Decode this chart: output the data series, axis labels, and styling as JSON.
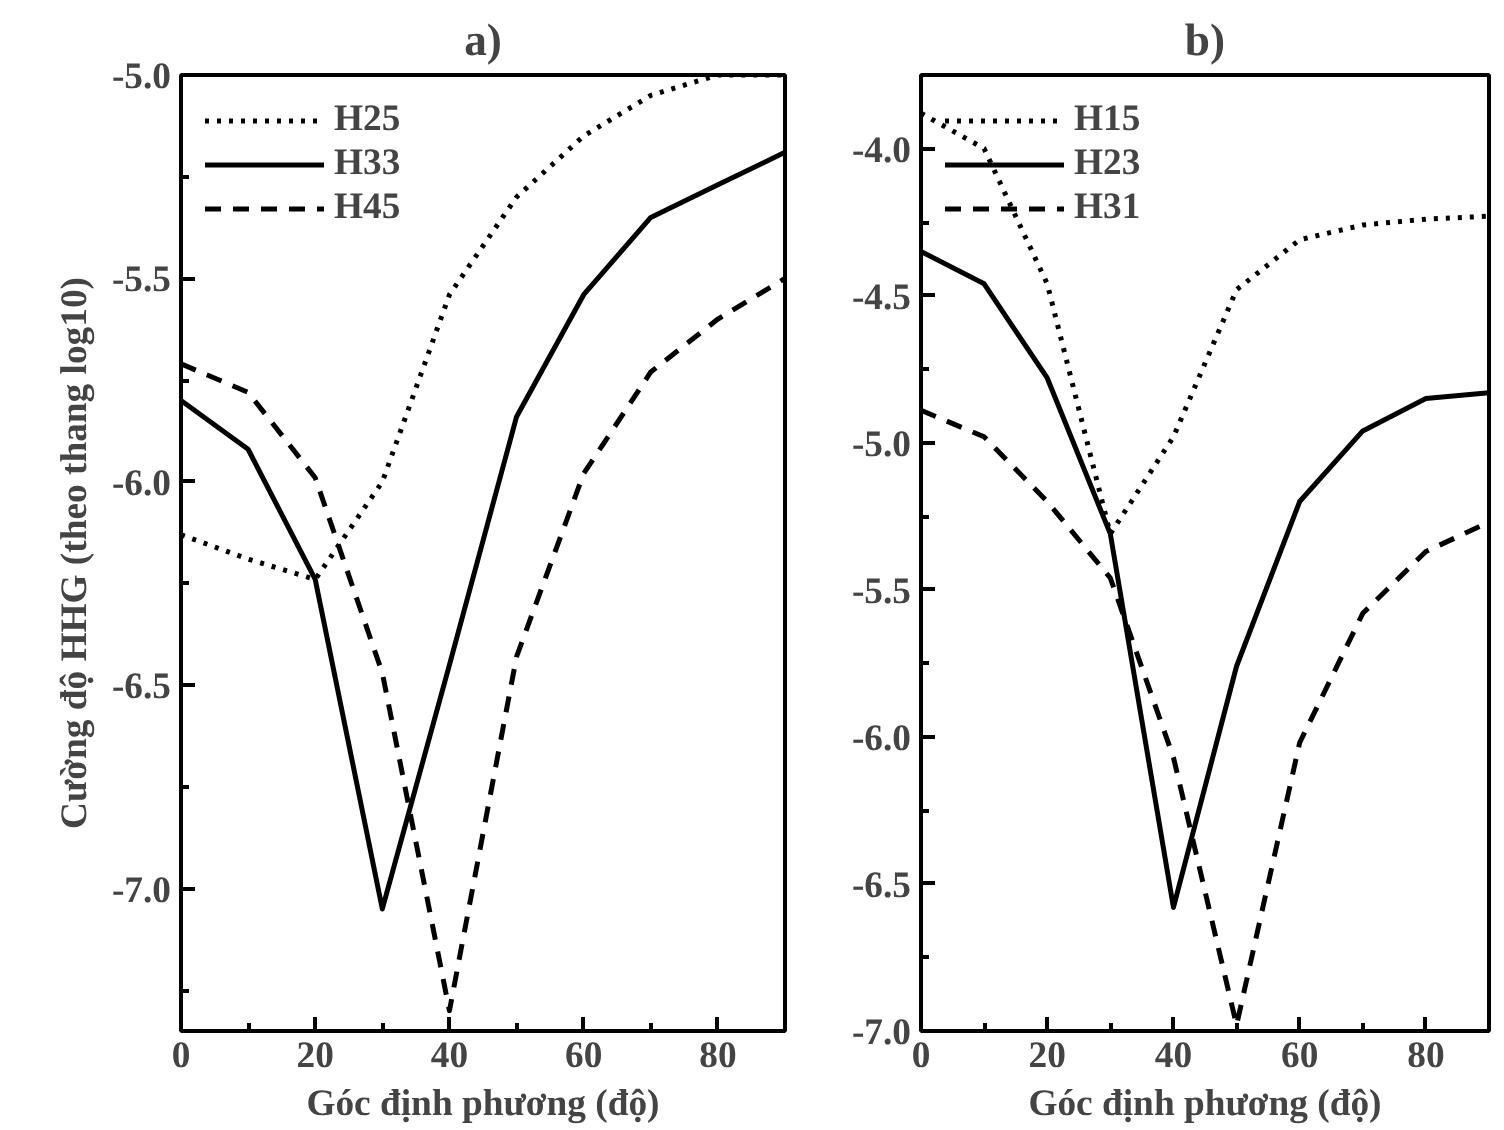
{
  "chart_data": [
    {
      "type": "line",
      "title": "a)",
      "xlabel": "Góc định phương (độ)",
      "ylabel": "Cường độ HHG (theo thang log10)",
      "x": [
        0,
        10,
        20,
        30,
        40,
        50,
        60,
        70,
        80,
        90
      ],
      "series": [
        {
          "name": "H25",
          "color": "#000000",
          "line_style": "dotted",
          "values": [
            -6.13,
            -6.19,
            -6.24,
            -6.0,
            -5.54,
            -5.3,
            -5.15,
            -5.05,
            -5.0,
            -5.0
          ]
        },
        {
          "name": "H33",
          "color": "#000000",
          "line_style": "solid",
          "values": [
            -5.8,
            -5.92,
            -6.24,
            -7.05,
            -6.45,
            -5.84,
            -5.54,
            -5.35,
            -5.27,
            -5.19
          ]
        },
        {
          "name": "H45",
          "color": "#000000",
          "line_style": "dashed",
          "values": [
            -5.71,
            -5.78,
            -5.99,
            -6.47,
            -7.3,
            -6.43,
            -5.98,
            -5.73,
            -5.6,
            -5.5
          ]
        }
      ],
      "xlim": [
        0,
        90
      ],
      "ylim": [
        -7.35,
        -5.0
      ],
      "xticks": [
        0,
        20,
        40,
        60,
        80
      ],
      "yticks": [
        {
          "value": -7.0,
          "label": "-7.0"
        },
        {
          "value": -6.5,
          "label": "-6.5"
        },
        {
          "value": -6.0,
          "label": "-6.0"
        },
        {
          "value": -5.5,
          "label": "-5.5"
        },
        {
          "value": -5.0,
          "label": "-5.0"
        }
      ],
      "grid": false,
      "legend": "top left",
      "marker": "none"
    },
    {
      "type": "line",
      "title": "b)",
      "xlabel": "Góc định phương (độ)",
      "x": [
        0,
        10,
        20,
        30,
        40,
        50,
        60,
        70,
        80,
        90
      ],
      "series": [
        {
          "name": "H15",
          "color": "#000000",
          "line_style": "dotted",
          "values": [
            -3.88,
            -4.0,
            -4.46,
            -5.31,
            -4.98,
            -4.48,
            -4.31,
            -4.26,
            -4.24,
            -4.23
          ]
        },
        {
          "name": "H23",
          "color": "#000000",
          "line_style": "solid",
          "values": [
            -4.35,
            -4.46,
            -4.78,
            -5.31,
            -6.58,
            -5.76,
            -5.2,
            -4.96,
            -4.85,
            -4.83
          ]
        },
        {
          "name": "H31",
          "color": "#000000",
          "line_style": "dashed",
          "values": [
            -4.89,
            -4.98,
            -5.2,
            -5.46,
            -6.07,
            -6.98,
            -6.02,
            -5.58,
            -5.37,
            -5.27
          ]
        }
      ],
      "xlim": [
        0,
        90
      ],
      "ylim": [
        -7.0,
        -3.75
      ],
      "xticks": [
        0,
        20,
        40,
        60,
        80
      ],
      "yticks": [
        {
          "value": -7.0,
          "label": "-7.0"
        },
        {
          "value": -6.5,
          "label": "-6.5"
        },
        {
          "value": -6.0,
          "label": "-6.0"
        },
        {
          "value": -5.5,
          "label": "-5.5"
        },
        {
          "value": -5.0,
          "label": "-5.0"
        },
        {
          "value": -4.5,
          "label": "-4.5"
        },
        {
          "value": -4.0,
          "label": "-4.0"
        }
      ],
      "grid": false,
      "legend": "top left",
      "marker": "none"
    }
  ]
}
